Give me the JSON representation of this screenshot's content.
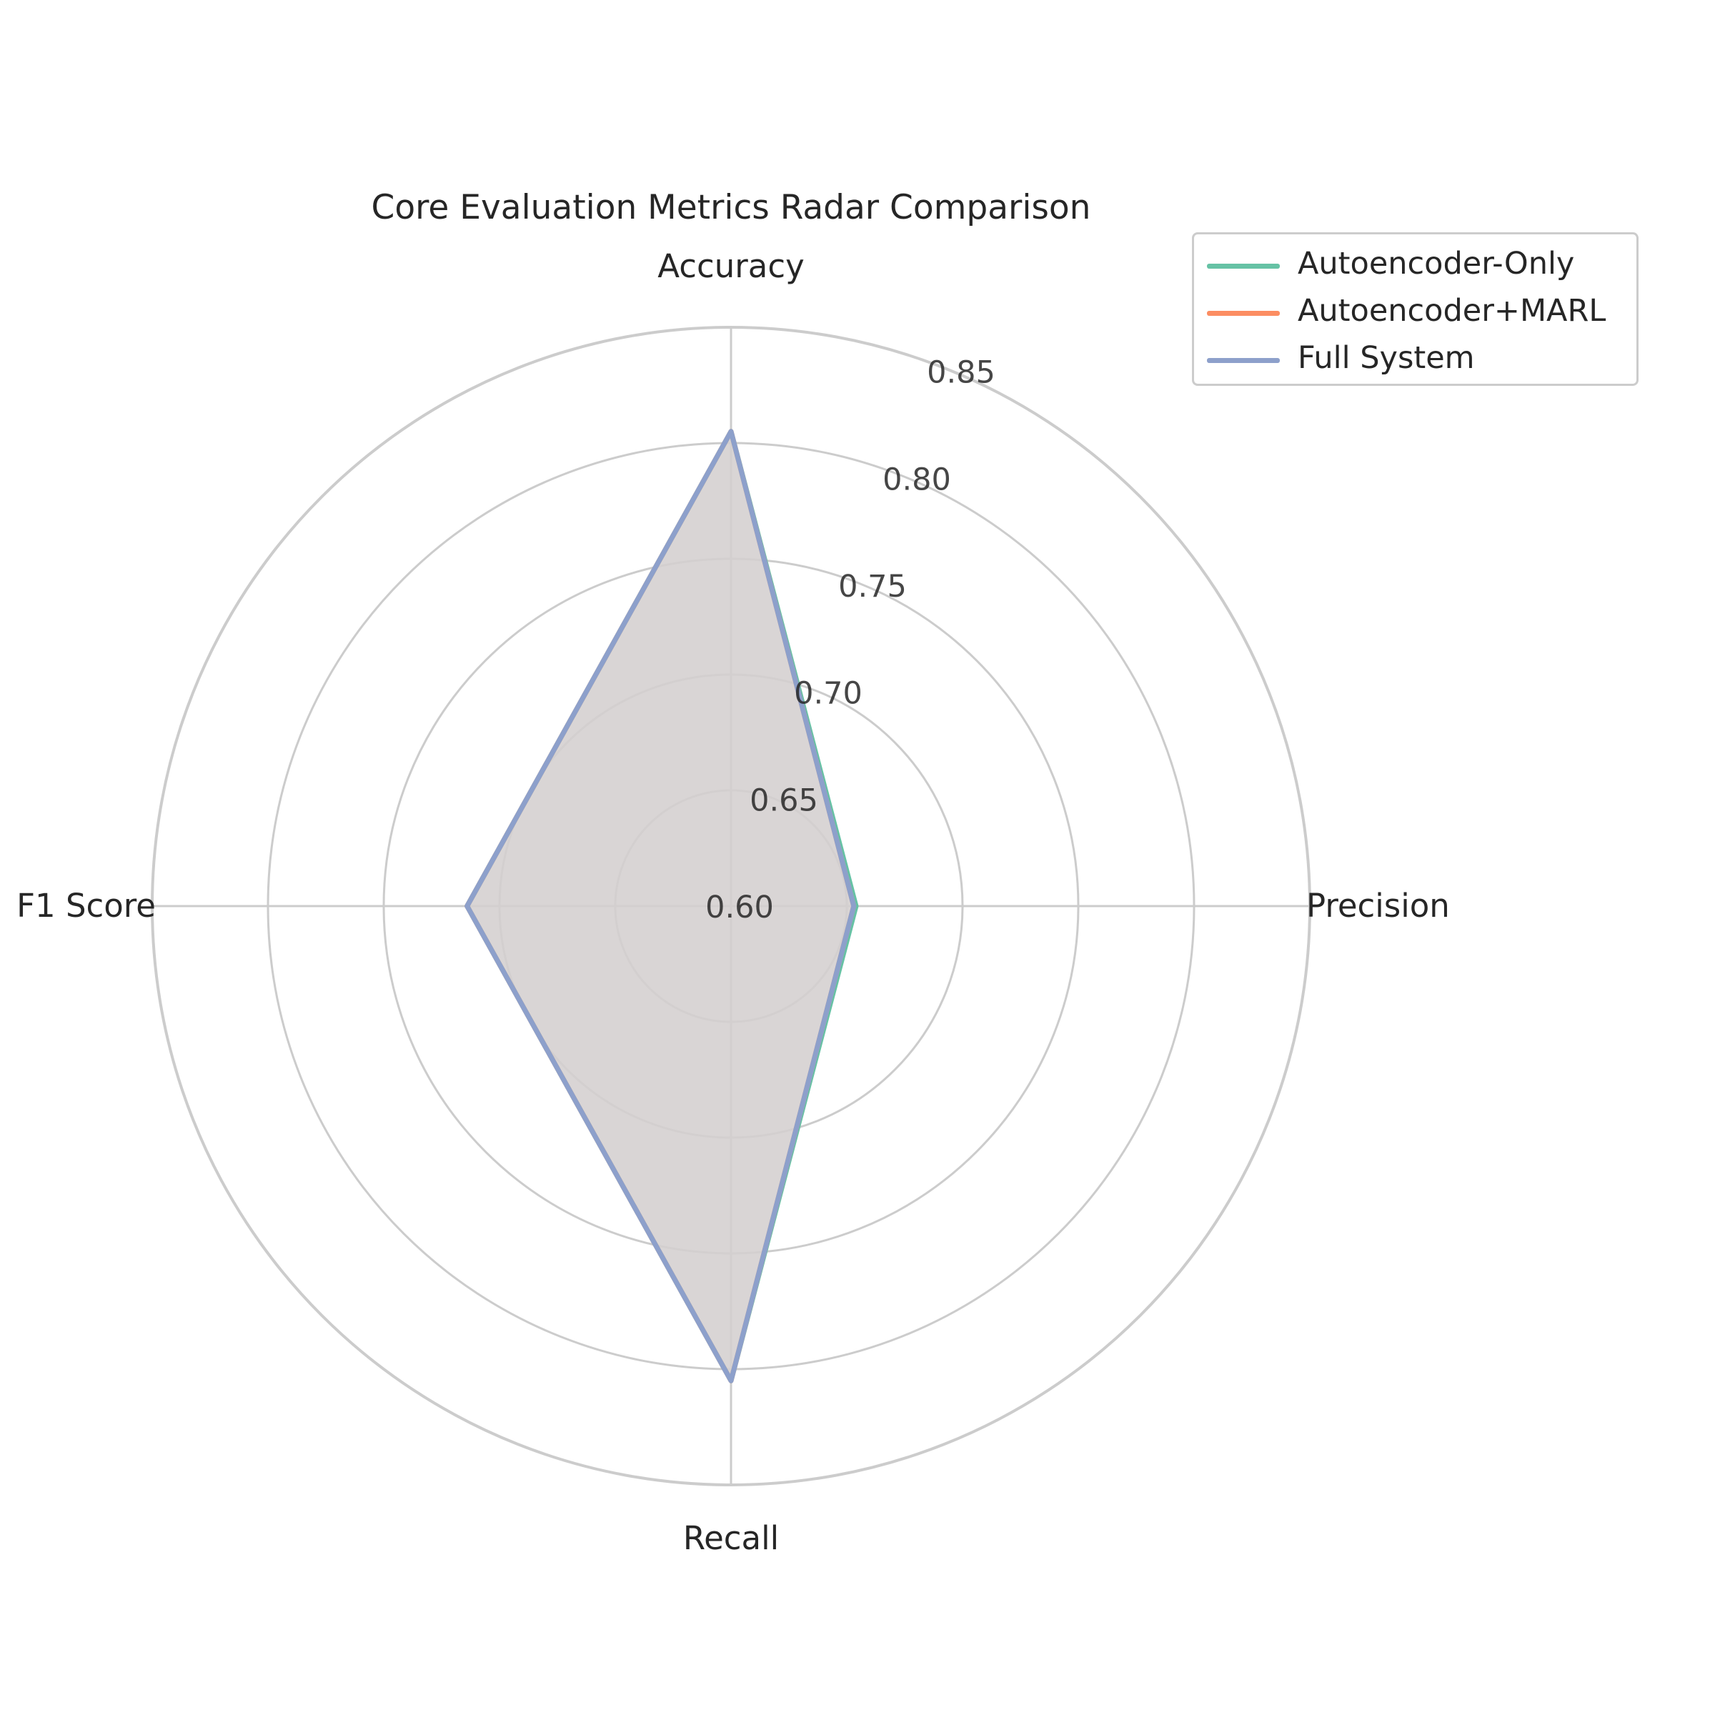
{
  "chart_data": {
    "type": "radar",
    "title": "Core Evaluation Metrics Radar Comparison",
    "axes": [
      "Accuracy",
      "Precision",
      "Recall",
      "F1 Score"
    ],
    "radial_ticks": [
      "0.60",
      "0.65",
      "0.70",
      "0.75",
      "0.80",
      "0.85"
    ],
    "rlim": [
      0.6,
      0.85
    ],
    "grid": true,
    "legend_position": "top-right",
    "series": [
      {
        "name": "Autoencoder-Only",
        "color": "#66c2a5",
        "values": [
          0.805,
          0.654,
          0.805,
          0.714
        ]
      },
      {
        "name": "Autoencoder+MARL",
        "color": "#fc8d62",
        "values": [
          0.805,
          0.653,
          0.805,
          0.714
        ]
      },
      {
        "name": "Full System",
        "color": "#8da0cb",
        "values": [
          0.805,
          0.653,
          0.805,
          0.714
        ]
      }
    ],
    "fill_color": "#d3cfcf"
  }
}
